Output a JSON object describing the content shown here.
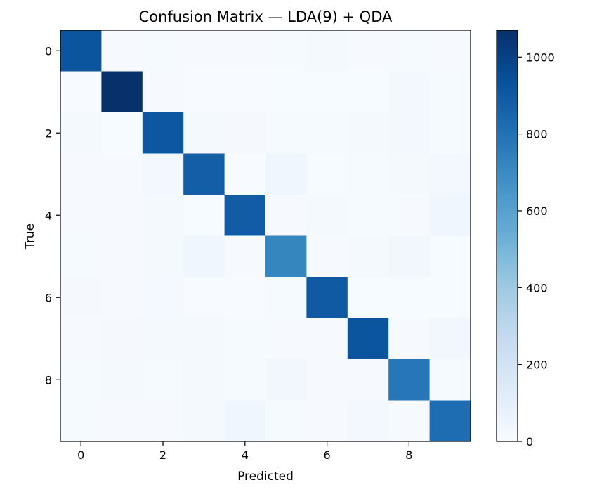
{
  "chart_data": {
    "type": "heatmap",
    "title": "Confusion Matrix — LDA(9) + QDA",
    "xlabel": "Predicted",
    "ylabel": "True",
    "rows": 10,
    "cols": 10,
    "xticks": [
      0,
      2,
      4,
      6,
      8
    ],
    "yticks": [
      0,
      2,
      4,
      6,
      8
    ],
    "colorbar": {
      "min": 0,
      "max": 1070,
      "ticks": [
        0,
        200,
        400,
        600,
        800,
        1000
      ]
    },
    "colormap": "Blues",
    "values": [
      [
        920,
        5,
        10,
        5,
        8,
        12,
        18,
        5,
        10,
        5
      ],
      [
        1,
        1070,
        8,
        2,
        2,
        4,
        4,
        4,
        28,
        10
      ],
      [
        14,
        4,
        910,
        18,
        13,
        10,
        10,
        14,
        28,
        10
      ],
      [
        8,
        6,
        28,
        880,
        2,
        38,
        4,
        12,
        18,
        22
      ],
      [
        6,
        7,
        14,
        3,
        890,
        6,
        16,
        10,
        8,
        40
      ],
      [
        12,
        6,
        14,
        40,
        7,
        720,
        7,
        14,
        34,
        4
      ],
      [
        13,
        8,
        20,
        2,
        2,
        10,
        900,
        4,
        4,
        4
      ],
      [
        6,
        13,
        17,
        14,
        10,
        5,
        5,
        920,
        8,
        32
      ],
      [
        12,
        14,
        12,
        16,
        11,
        30,
        6,
        8,
        780,
        10
      ],
      [
        12,
        6,
        7,
        14,
        38,
        10,
        6,
        24,
        5,
        820
      ]
    ]
  }
}
